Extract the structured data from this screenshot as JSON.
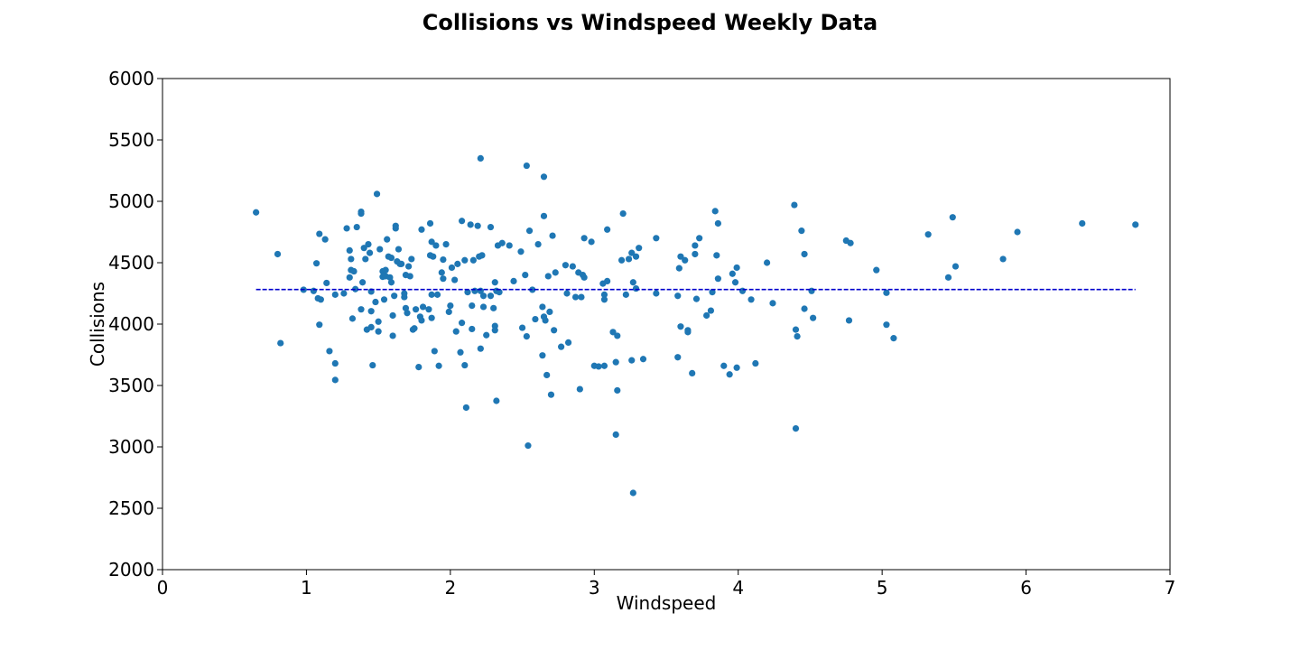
{
  "chart_data": {
    "type": "scatter",
    "title": "Collisions vs Windspeed Weekly Data",
    "xlabel": "Windspeed",
    "ylabel": "Collisions",
    "xlim": [
      0,
      7
    ],
    "ylim": [
      2000,
      6000
    ],
    "xticks": [
      "0",
      "1",
      "2",
      "3",
      "4",
      "5",
      "6",
      "7"
    ],
    "yticks": [
      "2000",
      "2500",
      "3000",
      "3500",
      "4000",
      "4500",
      "5000",
      "5500",
      "6000"
    ],
    "grid": false,
    "legend": "none",
    "point_color": "#1f77b4",
    "points": [
      [
        0.65,
        4910
      ],
      [
        0.8,
        4570
      ],
      [
        0.82,
        3845
      ],
      [
        0.98,
        4280
      ],
      [
        1.05,
        4270
      ],
      [
        1.07,
        4495
      ],
      [
        1.08,
        4210
      ],
      [
        1.09,
        3995
      ],
      [
        1.09,
        4735
      ],
      [
        1.1,
        4200
      ],
      [
        1.13,
        4690
      ],
      [
        1.14,
        4335
      ],
      [
        1.16,
        3780
      ],
      [
        1.2,
        4240
      ],
      [
        1.2,
        3680
      ],
      [
        1.2,
        3545
      ],
      [
        1.26,
        4250
      ],
      [
        1.28,
        4780
      ],
      [
        1.3,
        4380
      ],
      [
        1.3,
        4600
      ],
      [
        1.31,
        4440
      ],
      [
        1.31,
        4530
      ],
      [
        1.32,
        4045
      ],
      [
        1.33,
        4430
      ],
      [
        1.34,
        4285
      ],
      [
        1.35,
        4790
      ],
      [
        1.38,
        4915
      ],
      [
        1.38,
        4900
      ],
      [
        1.38,
        4120
      ],
      [
        1.39,
        4340
      ],
      [
        1.4,
        4620
      ],
      [
        1.41,
        4530
      ],
      [
        1.42,
        3955
      ],
      [
        1.43,
        4650
      ],
      [
        1.44,
        4580
      ],
      [
        1.45,
        4265
      ],
      [
        1.45,
        4105
      ],
      [
        1.45,
        3975
      ],
      [
        1.46,
        3665
      ],
      [
        1.48,
        4180
      ],
      [
        1.49,
        5060
      ],
      [
        1.5,
        4020
      ],
      [
        1.5,
        3940
      ],
      [
        1.51,
        4610
      ],
      [
        1.53,
        4430
      ],
      [
        1.53,
        4385
      ],
      [
        1.54,
        4200
      ],
      [
        1.55,
        4440
      ],
      [
        1.55,
        4390
      ],
      [
        1.56,
        4690
      ],
      [
        1.57,
        4550
      ],
      [
        1.58,
        4380
      ],
      [
        1.59,
        4340
      ],
      [
        1.59,
        4540
      ],
      [
        1.6,
        4070
      ],
      [
        1.6,
        3905
      ],
      [
        1.61,
        4230
      ],
      [
        1.62,
        4800
      ],
      [
        1.62,
        4780
      ],
      [
        1.63,
        4510
      ],
      [
        1.64,
        4610
      ],
      [
        1.65,
        4490
      ],
      [
        1.66,
        4490
      ],
      [
        1.68,
        4220
      ],
      [
        1.68,
        4250
      ],
      [
        1.69,
        4400
      ],
      [
        1.69,
        4130
      ],
      [
        1.7,
        4090
      ],
      [
        1.71,
        4470
      ],
      [
        1.72,
        4390
      ],
      [
        1.73,
        4530
      ],
      [
        1.74,
        3955
      ],
      [
        1.75,
        3965
      ],
      [
        1.76,
        4120
      ],
      [
        1.78,
        3650
      ],
      [
        1.79,
        4060
      ],
      [
        1.8,
        4770
      ],
      [
        1.8,
        4030
      ],
      [
        1.81,
        4140
      ],
      [
        1.85,
        4120
      ],
      [
        1.86,
        4820
      ],
      [
        1.86,
        4560
      ],
      [
        1.87,
        4670
      ],
      [
        1.87,
        4240
      ],
      [
        1.87,
        4050
      ],
      [
        1.88,
        4550
      ],
      [
        1.89,
        3780
      ],
      [
        1.9,
        4640
      ],
      [
        1.91,
        4240
      ],
      [
        1.92,
        3660
      ],
      [
        1.94,
        4420
      ],
      [
        1.95,
        4525
      ],
      [
        1.95,
        4370
      ],
      [
        1.97,
        4650
      ],
      [
        1.99,
        4100
      ],
      [
        2.0,
        4150
      ],
      [
        2.01,
        4460
      ],
      [
        2.03,
        4360
      ],
      [
        2.04,
        3940
      ],
      [
        2.05,
        4490
      ],
      [
        2.07,
        3770
      ],
      [
        2.08,
        4840
      ],
      [
        2.08,
        4010
      ],
      [
        2.1,
        4520
      ],
      [
        2.1,
        3665
      ],
      [
        2.11,
        3320
      ],
      [
        2.12,
        4260
      ],
      [
        2.14,
        4810
      ],
      [
        2.15,
        4150
      ],
      [
        2.15,
        3960
      ],
      [
        2.16,
        4520
      ],
      [
        2.17,
        4270
      ],
      [
        2.19,
        4800
      ],
      [
        2.2,
        4550
      ],
      [
        2.21,
        5350
      ],
      [
        2.21,
        4270
      ],
      [
        2.21,
        3800
      ],
      [
        2.22,
        4560
      ],
      [
        2.23,
        4230
      ],
      [
        2.23,
        4140
      ],
      [
        2.25,
        3910
      ],
      [
        2.28,
        4790
      ],
      [
        2.28,
        4230
      ],
      [
        2.3,
        4130
      ],
      [
        2.31,
        3985
      ],
      [
        2.31,
        3950
      ],
      [
        2.31,
        4340
      ],
      [
        2.32,
        4270
      ],
      [
        2.32,
        3375
      ],
      [
        2.33,
        4640
      ],
      [
        2.34,
        4260
      ],
      [
        2.36,
        4660
      ],
      [
        2.41,
        4640
      ],
      [
        2.44,
        4350
      ],
      [
        2.49,
        4590
      ],
      [
        2.5,
        3970
      ],
      [
        2.52,
        4400
      ],
      [
        2.53,
        5290
      ],
      [
        2.53,
        3900
      ],
      [
        2.54,
        3010
      ],
      [
        2.55,
        4760
      ],
      [
        2.57,
        4280
      ],
      [
        2.59,
        4040
      ],
      [
        2.61,
        4650
      ],
      [
        2.64,
        4140
      ],
      [
        2.64,
        3745
      ],
      [
        2.65,
        5200
      ],
      [
        2.65,
        4880
      ],
      [
        2.65,
        4060
      ],
      [
        2.66,
        4030
      ],
      [
        2.67,
        3585
      ],
      [
        2.68,
        4390
      ],
      [
        2.69,
        4100
      ],
      [
        2.7,
        3425
      ],
      [
        2.71,
        4720
      ],
      [
        2.72,
        3950
      ],
      [
        2.73,
        4420
      ],
      [
        2.77,
        3815
      ],
      [
        2.8,
        4480
      ],
      [
        2.81,
        4250
      ],
      [
        2.82,
        3850
      ],
      [
        2.85,
        4470
      ],
      [
        2.87,
        4220
      ],
      [
        2.89,
        4420
      ],
      [
        2.9,
        3470
      ],
      [
        2.91,
        4220
      ],
      [
        2.92,
        4400
      ],
      [
        2.93,
        4700
      ],
      [
        2.93,
        4380
      ],
      [
        2.98,
        4670
      ],
      [
        3.0,
        3660
      ],
      [
        3.03,
        3655
      ],
      [
        3.06,
        4330
      ],
      [
        3.07,
        4200
      ],
      [
        3.07,
        4240
      ],
      [
        3.07,
        3660
      ],
      [
        3.09,
        4350
      ],
      [
        3.09,
        4770
      ],
      [
        3.13,
        3935
      ],
      [
        3.15,
        3100
      ],
      [
        3.15,
        3690
      ],
      [
        3.16,
        3460
      ],
      [
        3.16,
        3905
      ],
      [
        3.19,
        4520
      ],
      [
        3.2,
        4900
      ],
      [
        3.22,
        4240
      ],
      [
        3.24,
        4530
      ],
      [
        3.26,
        4580
      ],
      [
        3.26,
        3705
      ],
      [
        3.27,
        4340
      ],
      [
        3.27,
        2625
      ],
      [
        3.29,
        4550
      ],
      [
        3.29,
        4290
      ],
      [
        3.31,
        4620
      ],
      [
        3.34,
        3715
      ],
      [
        3.43,
        4700
      ],
      [
        3.43,
        4250
      ],
      [
        3.58,
        4230
      ],
      [
        3.58,
        3730
      ],
      [
        3.59,
        4455
      ],
      [
        3.6,
        4550
      ],
      [
        3.6,
        3980
      ],
      [
        3.63,
        4520
      ],
      [
        3.65,
        3950
      ],
      [
        3.65,
        3935
      ],
      [
        3.68,
        3600
      ],
      [
        3.7,
        4640
      ],
      [
        3.7,
        4570
      ],
      [
        3.71,
        4205
      ],
      [
        3.73,
        4700
      ],
      [
        3.78,
        4070
      ],
      [
        3.81,
        4110
      ],
      [
        3.82,
        4260
      ],
      [
        3.84,
        4920
      ],
      [
        3.85,
        4560
      ],
      [
        3.86,
        4820
      ],
      [
        3.86,
        4370
      ],
      [
        3.9,
        3660
      ],
      [
        3.94,
        3590
      ],
      [
        3.96,
        4410
      ],
      [
        3.98,
        4340
      ],
      [
        3.99,
        4460
      ],
      [
        3.99,
        3645
      ],
      [
        4.03,
        4270
      ],
      [
        4.09,
        4200
      ],
      [
        4.12,
        3680
      ],
      [
        4.2,
        4500
      ],
      [
        4.24,
        4170
      ],
      [
        4.39,
        4970
      ],
      [
        4.4,
        3150
      ],
      [
        4.4,
        3955
      ],
      [
        4.41,
        3900
      ],
      [
        4.44,
        4760
      ],
      [
        4.46,
        4570
      ],
      [
        4.46,
        4125
      ],
      [
        4.51,
        4270
      ],
      [
        4.52,
        4050
      ],
      [
        4.75,
        4680
      ],
      [
        4.77,
        4030
      ],
      [
        4.78,
        4660
      ],
      [
        4.96,
        4440
      ],
      [
        5.03,
        4255
      ],
      [
        5.03,
        3995
      ],
      [
        5.08,
        3885
      ],
      [
        5.32,
        4730
      ],
      [
        5.46,
        4380
      ],
      [
        5.49,
        4870
      ],
      [
        5.51,
        4470
      ],
      [
        5.84,
        4530
      ],
      [
        5.94,
        4750
      ],
      [
        6.39,
        4820
      ],
      [
        6.76,
        4810
      ]
    ],
    "fit_line": {
      "x": [
        0.65,
        6.76
      ],
      "y": [
        4282,
        4282
      ],
      "style": "dashed",
      "color": "#0000cd"
    }
  }
}
